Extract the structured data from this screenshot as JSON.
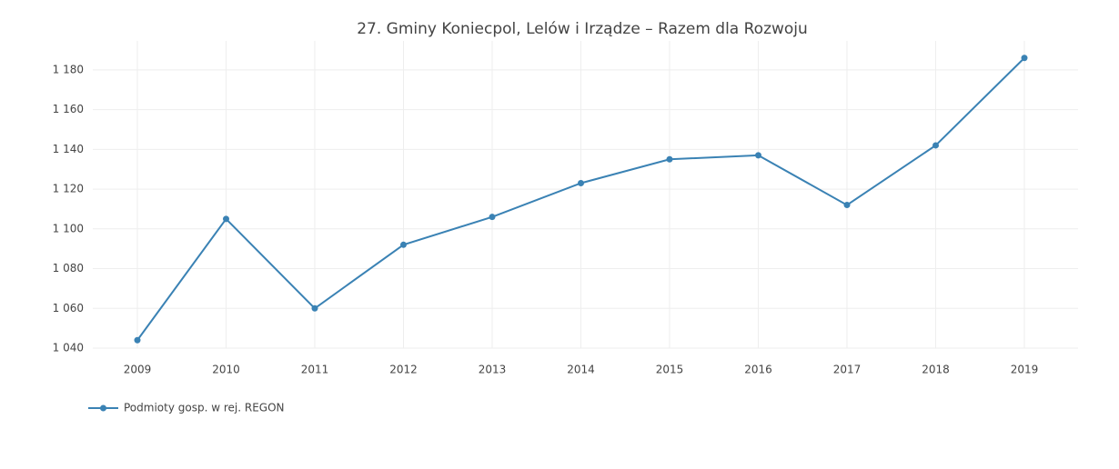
{
  "chart_data": {
    "type": "line",
    "title": "27. Gminy Koniecpol, Lelów  i Irządze – Razem dla Rozwoju",
    "categories": [
      "2009",
      "2010",
      "2011",
      "2012",
      "2013",
      "2014",
      "2015",
      "2016",
      "2017",
      "2018",
      "2019"
    ],
    "series": [
      {
        "name": "Podmioty gosp. w rej. REGON",
        "color": "#3a82b4",
        "values": [
          1044,
          1105,
          1060,
          1092,
          1106,
          1123,
          1135,
          1137,
          1112,
          1142,
          1186
        ]
      }
    ],
    "ylim": [
      1040,
      1190
    ],
    "yticks": [
      {
        "value": 1040,
        "label": "1 040"
      },
      {
        "value": 1060,
        "label": "1 060"
      },
      {
        "value": 1080,
        "label": "1 080"
      },
      {
        "value": 1100,
        "label": "1 100"
      },
      {
        "value": 1120,
        "label": "1 120"
      },
      {
        "value": 1140,
        "label": "1 140"
      },
      {
        "value": 1160,
        "label": "1 160"
      },
      {
        "value": 1180,
        "label": "1 180"
      }
    ],
    "grid": true
  }
}
